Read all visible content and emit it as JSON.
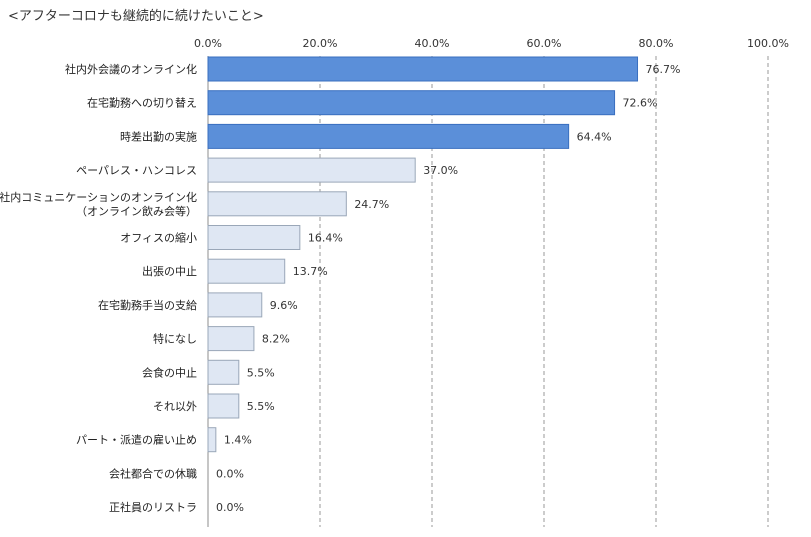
{
  "chart_data": {
    "type": "bar",
    "orientation": "horizontal",
    "title": "<アフターコロナも継続的に続けたいこと>",
    "categories": [
      "社内外会議のオンライン化",
      "在宅勤務への切り替え",
      "時差出勤の実施",
      "ペーパレス・ハンコレス",
      "社内コミュニケーションのオンライン化\n（オンライン飲み会等）",
      "オフィスの縮小",
      "出張の中止",
      "在宅勤務手当の支給",
      "特になし",
      "会食の中止",
      "それ以外",
      "パート・派遣の雇い止め",
      "会社都合での休職",
      "正社員のリストラ"
    ],
    "values": [
      76.7,
      72.6,
      64.4,
      37.0,
      24.7,
      16.4,
      13.7,
      9.6,
      8.2,
      5.5,
      5.5,
      1.4,
      0.0,
      0.0
    ],
    "value_labels": [
      "76.7%",
      "72.6%",
      "64.4%",
      "37.0%",
      "24.7%",
      "16.4%",
      "13.7%",
      "9.6%",
      "8.2%",
      "5.5%",
      "5.5%",
      "1.4%",
      "0.0%",
      "0.0%"
    ],
    "highlighted": [
      true,
      true,
      true,
      false,
      false,
      false,
      false,
      false,
      false,
      false,
      false,
      false,
      false,
      false
    ],
    "xlim": [
      0,
      100
    ],
    "xticks": [
      0,
      20,
      40,
      60,
      80,
      100
    ],
    "xtick_labels": [
      "0.0%",
      "20.0%",
      "40.0%",
      "60.0%",
      "80.0%",
      "100.0%"
    ],
    "axis_position": "top",
    "grid": true,
    "legend": "none",
    "colors": {
      "highlight": "#5b8fd9",
      "highlight_border": "#3a6fbf",
      "normal": "#dfe7f3",
      "normal_border": "#9aa7b8",
      "grid": "#999999",
      "text": "#333333"
    }
  }
}
